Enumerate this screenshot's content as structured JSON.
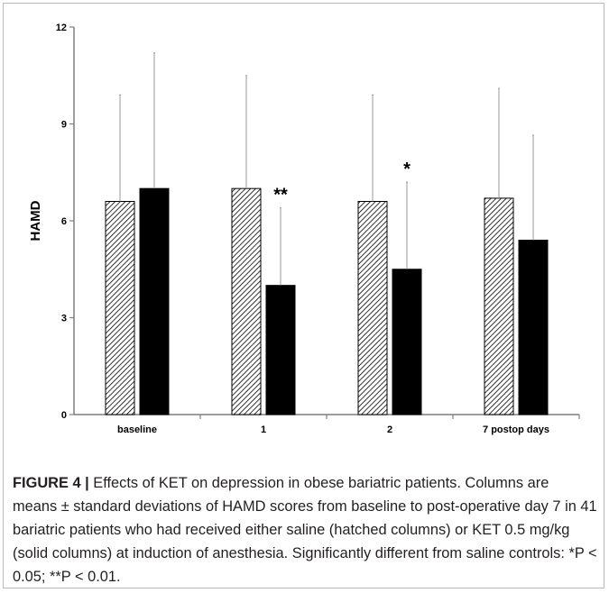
{
  "chart_data": {
    "type": "bar",
    "ylabel": "HAMD",
    "ylim": [
      0,
      12
    ],
    "yticks": [
      "0",
      "3",
      "6",
      "9",
      "12"
    ],
    "categories": [
      "baseline",
      "1",
      "2",
      "7 postop days"
    ],
    "series": [
      {
        "pattern": "hatched",
        "fill": "#ffffff",
        "values": [
          6.6,
          7.0,
          6.6,
          6.7
        ],
        "sd": [
          3.3,
          3.5,
          3.3,
          3.4
        ]
      },
      {
        "pattern": "solid",
        "fill": "#000000",
        "values": [
          7.0,
          4.0,
          4.5,
          5.4
        ],
        "sd": [
          4.2,
          2.4,
          2.7,
          3.25
        ]
      }
    ],
    "annotations": [
      {
        "category": "1",
        "text": "**"
      },
      {
        "category": "2",
        "text": "*"
      }
    ],
    "legend": "none",
    "grid": false
  },
  "caption": {
    "label": "FIGURE 4 |",
    "text": "Effects of KET on depression in obese bariatric patients. Columns are means ± standard deviations of HAMD scores from baseline to post-operative day 7 in 41 bariatric patients who had received either saline (hatched columns) or KET 0.5 mg/kg (solid columns) at induction of anesthesia. Significantly different from saline controls: *P < 0.05; **P < 0.01."
  }
}
